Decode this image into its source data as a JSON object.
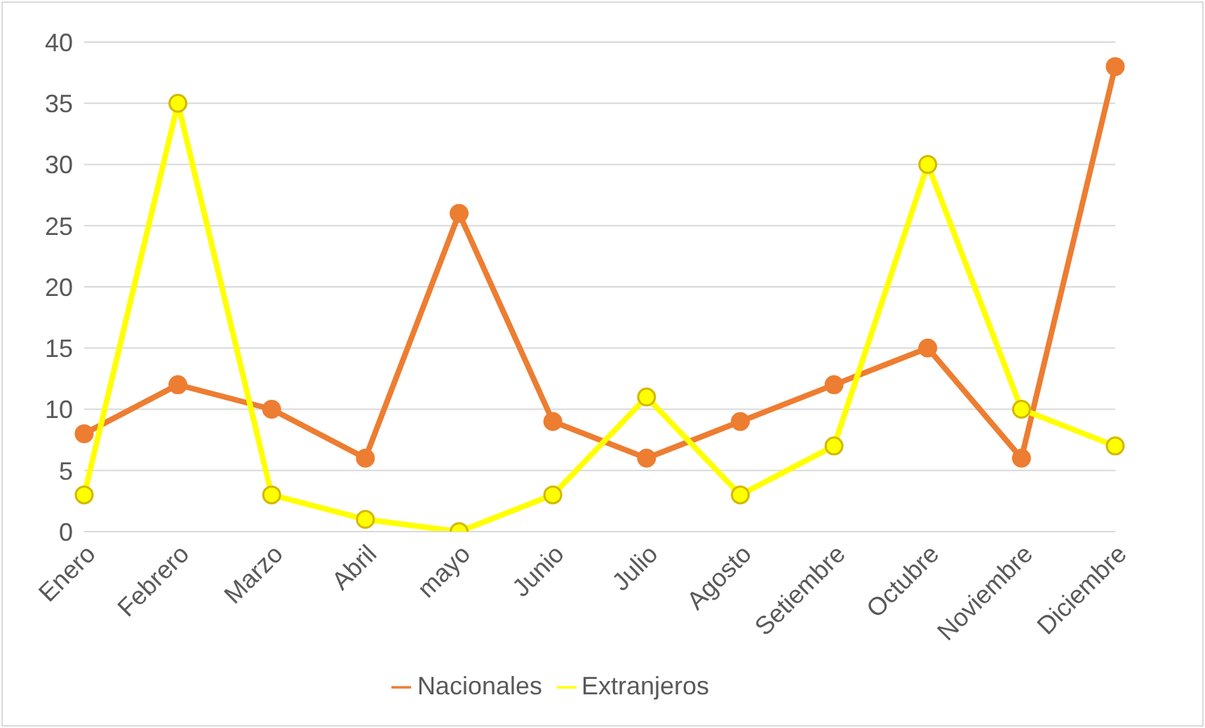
{
  "chart_data": {
    "type": "line",
    "categories": [
      "Enero",
      "Febrero",
      "Marzo",
      "Abril",
      "mayo",
      "Junio",
      "Julio",
      "Agosto",
      "Setiembre",
      "Octubre",
      "Noviembre",
      "Diciembre"
    ],
    "series": [
      {
        "name": "Nacionales",
        "color": "#ed7d31",
        "values": [
          8,
          12,
          10,
          6,
          26,
          9,
          6,
          9,
          12,
          15,
          6,
          38
        ]
      },
      {
        "name": "Extranjeros",
        "color": "#ffff00",
        "values": [
          3,
          35,
          3,
          1,
          0,
          3,
          11,
          3,
          7,
          30,
          10,
          7
        ]
      }
    ],
    "ylim": [
      0,
      40
    ],
    "yticks": [
      0,
      5,
      10,
      15,
      20,
      25,
      30,
      35,
      40
    ],
    "grid": "y",
    "legend": "bottom",
    "marker": "circle",
    "line_style": "solid"
  }
}
